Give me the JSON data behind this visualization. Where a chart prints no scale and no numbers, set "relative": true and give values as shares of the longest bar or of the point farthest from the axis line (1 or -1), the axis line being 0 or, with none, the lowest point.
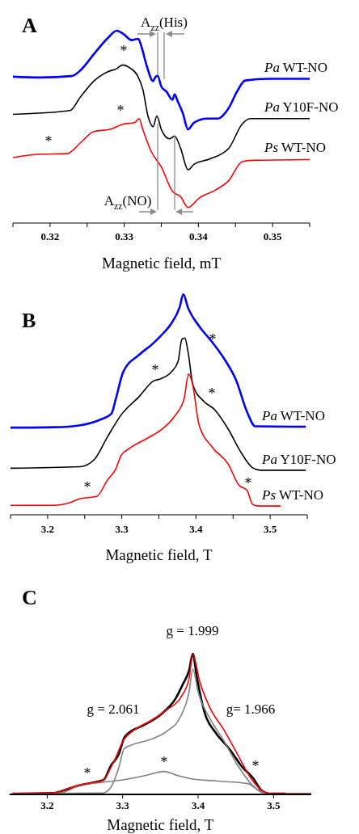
{
  "chart_data": [
    {
      "type": "line",
      "title": "A",
      "xlabel": "Magnetic field, mT",
      "relative": true,
      "xlim": [
        0.315,
        0.355
      ],
      "xticks": [
        {
          "value": 0.315,
          "label": null
        },
        0.32,
        {
          "value": 0.325,
          "label": null
        },
        0.33,
        {
          "value": 0.335,
          "label": null
        },
        0.34,
        {
          "value": 0.345,
          "label": null
        },
        0.35,
        {
          "value": 0.355,
          "label": null
        }
      ],
      "series": [
        {
          "name": "Pa WT-NO",
          "color": "#0000ff",
          "x": [
            0.315,
            0.3187,
            0.3229,
            0.3241,
            0.3259,
            0.3278,
            0.329,
            0.3299,
            0.331,
            0.3319,
            0.3323,
            0.333,
            0.3339,
            0.3342,
            0.3345,
            0.335,
            0.3357,
            0.3365,
            0.3368,
            0.3372,
            0.3379,
            0.3386,
            0.3394,
            0.3412,
            0.3426,
            0.3441,
            0.3452,
            0.3463,
            0.3495,
            0.3524,
            0.355
          ],
          "values": [
            0.761,
            0.757,
            0.764,
            0.794,
            0.878,
            0.962,
            1.0,
            0.983,
            0.951,
            0.958,
            0.92,
            0.822,
            0.738,
            0.759,
            0.766,
            0.71,
            0.683,
            0.641,
            0.669,
            0.634,
            0.571,
            0.487,
            0.522,
            0.543,
            0.543,
            0.599,
            0.683,
            0.741,
            0.75,
            0.75,
            0.75
          ]
        },
        {
          "name": "Pa Y10F-NO",
          "color": "#000000",
          "x": [
            0.315,
            0.3227,
            0.3241,
            0.3259,
            0.3278,
            0.3289,
            0.3298,
            0.3307,
            0.3318,
            0.3325,
            0.3332,
            0.3339,
            0.3344,
            0.335,
            0.3361,
            0.3368,
            0.3376,
            0.3386,
            0.3394,
            0.3415,
            0.3441,
            0.3459,
            0.347,
            0.355
          ],
          "values": [
            0.565,
            0.585,
            0.655,
            0.738,
            0.787,
            0.801,
            0.822,
            0.808,
            0.766,
            0.697,
            0.557,
            0.501,
            0.557,
            0.487,
            0.438,
            0.452,
            0.389,
            0.277,
            0.305,
            0.333,
            0.389,
            0.515,
            0.543,
            0.543
          ]
        },
        {
          "name": "Ps WT-NO",
          "color": "#ff0000",
          "x": [
            0.315,
            0.3187,
            0.3223,
            0.3241,
            0.3259,
            0.3281,
            0.3299,
            0.3314,
            0.332,
            0.3325,
            0.3336,
            0.335,
            0.3365,
            0.3376,
            0.3386,
            0.3401,
            0.3423,
            0.3441,
            0.3459,
            0.3473,
            0.355
          ],
          "values": [
            0.34,
            0.358,
            0.361,
            0.417,
            0.476,
            0.487,
            0.515,
            0.522,
            0.543,
            0.487,
            0.375,
            0.291,
            0.165,
            0.137,
            0.081,
            0.13,
            0.172,
            0.221,
            0.319,
            0.326,
            0.33
          ]
        }
      ],
      "annotations": [
        "A$_{zz}$(His)",
        "A$_{zz}$(NO)",
        "*",
        "*",
        "*"
      ]
    },
    {
      "type": "line",
      "title": "B",
      "xlabel": "Magnetic field, T",
      "relative": true,
      "xlim": [
        3.15,
        3.55
      ],
      "xticks": [
        {
          "value": 3.15,
          "label": null
        },
        3.2,
        {
          "value": 3.25,
          "label": null
        },
        3.3,
        {
          "value": 3.35,
          "label": null
        },
        3.4,
        {
          "value": 3.45,
          "label": null
        },
        3.5,
        {
          "value": 3.55,
          "label": null
        }
      ],
      "series": [
        {
          "name": "Pa WT-NO",
          "color": "#0000ff",
          "x": [
            3.15,
            3.208,
            3.244,
            3.273,
            3.286,
            3.292,
            3.302,
            3.324,
            3.342,
            3.353,
            3.367,
            3.378,
            3.383,
            3.389,
            3.404,
            3.422,
            3.44,
            3.454,
            3.469,
            3.48,
            3.548
          ],
          "values": [
            0.395,
            0.397,
            0.406,
            0.434,
            0.458,
            0.526,
            0.648,
            0.727,
            0.776,
            0.813,
            0.868,
            0.941,
            1.0,
            0.941,
            0.856,
            0.782,
            0.697,
            0.611,
            0.465,
            0.401,
            0.399
          ]
        },
        {
          "name": "Pa Y10F-NO",
          "color": "#000000",
          "x": [
            3.15,
            3.244,
            3.263,
            3.281,
            3.299,
            3.324,
            3.342,
            3.353,
            3.367,
            3.376,
            3.381,
            3.385,
            3.389,
            3.396,
            3.411,
            3.425,
            3.443,
            3.461,
            3.476,
            3.487,
            3.548
          ],
          "values": [
            0.211,
            0.218,
            0.251,
            0.355,
            0.452,
            0.538,
            0.605,
            0.617,
            0.648,
            0.697,
            0.795,
            0.801,
            0.746,
            0.587,
            0.513,
            0.477,
            0.391,
            0.281,
            0.214,
            0.202,
            0.202
          ]
        },
        {
          "name": "Ps WT-NO",
          "color": "#ff0000",
          "x": [
            3.15,
            3.208,
            3.23,
            3.244,
            3.266,
            3.281,
            3.292,
            3.299,
            3.31,
            3.335,
            3.353,
            3.371,
            3.384,
            3.39,
            3.395,
            3.404,
            3.422,
            3.443,
            3.458,
            3.469,
            3.476,
            3.483,
            3.514
          ],
          "values": [
            0.043,
            0.043,
            0.055,
            0.073,
            0.083,
            0.159,
            0.208,
            0.269,
            0.3,
            0.348,
            0.385,
            0.446,
            0.526,
            0.638,
            0.599,
            0.41,
            0.306,
            0.232,
            0.134,
            0.11,
            0.049,
            0.04,
            0.04
          ]
        }
      ],
      "annotations": [
        "*",
        "*",
        "*",
        "*",
        "*"
      ]
    },
    {
      "type": "line",
      "title": "C",
      "xlabel": "Magnetic field, T",
      "relative": true,
      "xlim": [
        3.15,
        3.55
      ],
      "xticks": [
        3.2,
        3.3,
        3.4,
        3.5
      ],
      "series": [
        {
          "color": "#000000",
          "x": [
            3.154,
            3.209,
            3.227,
            3.245,
            3.266,
            3.275,
            3.284,
            3.295,
            3.302,
            3.309,
            3.327,
            3.352,
            3.37,
            3.38,
            3.388,
            3.393,
            3.398,
            3.409,
            3.423,
            3.441,
            3.459,
            3.473,
            3.484,
            3.495,
            3.516
          ],
          "values": [
            0.006,
            0.01,
            0.038,
            0.067,
            0.09,
            0.105,
            0.201,
            0.287,
            0.402,
            0.441,
            0.489,
            0.575,
            0.68,
            0.785,
            0.881,
            1.0,
            0.843,
            0.575,
            0.441,
            0.326,
            0.192,
            0.115,
            0.029,
            0.006,
            0.006
          ]
        },
        {
          "color": "#808080",
          "x": [
            3.154,
            3.273,
            3.284,
            3.295,
            3.302,
            3.313,
            3.338,
            3.359,
            3.377,
            3.388,
            3.393,
            3.4,
            3.416,
            3.434,
            3.452,
            3.47,
            3.484,
            3.495
          ],
          "values": [
            0.006,
            0.01,
            0.048,
            0.192,
            0.326,
            0.354,
            0.393,
            0.45,
            0.556,
            0.728,
            0.891,
            0.728,
            0.536,
            0.383,
            0.211,
            0.077,
            0.015,
            0.006
          ]
        },
        {
          "color": "#808080",
          "x": [
            3.154,
            3.216,
            3.245,
            3.273,
            3.302,
            3.33,
            3.355,
            3.373,
            3.391,
            3.423,
            3.466,
            3.48,
            3.491
          ],
          "values": [
            0.006,
            0.01,
            0.067,
            0.086,
            0.105,
            0.134,
            0.163,
            0.134,
            0.111,
            0.096,
            0.077,
            0.029,
            0.006
          ]
        },
        {
          "color": "#ff0000",
          "x": [
            3.154,
            3.209,
            3.23,
            3.255,
            3.273,
            3.288,
            3.302,
            3.316,
            3.338,
            3.359,
            3.377,
            3.388,
            3.393,
            3.402,
            3.416,
            3.434,
            3.452,
            3.47,
            3.484,
            3.495,
            3.55
          ],
          "values": [
            0.006,
            0.01,
            0.048,
            0.08,
            0.096,
            0.23,
            0.393,
            0.46,
            0.527,
            0.603,
            0.69,
            0.824,
            0.996,
            0.805,
            0.613,
            0.46,
            0.287,
            0.115,
            0.029,
            0.006,
            0.006
          ]
        }
      ],
      "annotations": [
        "g = 1.999",
        "g = 2.061",
        "g= 1.966",
        "*",
        "*",
        "*"
      ]
    }
  ]
}
